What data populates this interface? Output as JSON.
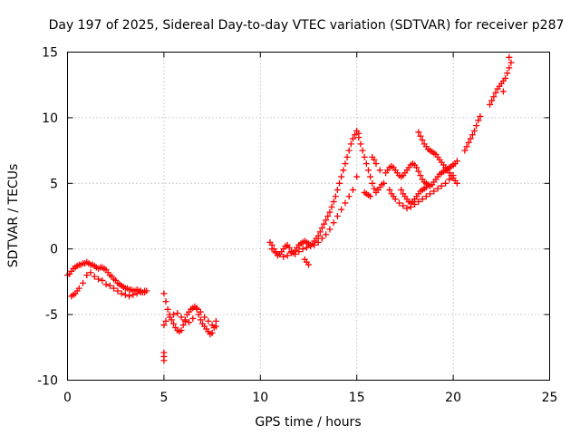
{
  "chart_data": {
    "type": "scatter",
    "title": "Day 197 of 2025, Sidereal Day-to-day VTEC variation (SDTVAR) for receiver p287",
    "xlabel": "GPS time / hours",
    "ylabel": "SDTVAR / TECUs",
    "xlim": [
      0,
      25
    ],
    "ylim": [
      -10,
      15
    ],
    "xticks": [
      0,
      5,
      10,
      15,
      20,
      25
    ],
    "yticks": [
      -10,
      -5,
      0,
      5,
      10,
      15
    ],
    "xtick_labels": [
      "0",
      "5",
      "10",
      "15",
      "20",
      "25"
    ],
    "ytick_labels": [
      "-10",
      "-5",
      "0",
      "5",
      "10",
      "15"
    ],
    "grid": true,
    "marker": "+",
    "color": "#ff0000",
    "series": [
      {
        "name": "SDTVAR",
        "x": [
          0.0,
          0.1,
          0.2,
          0.3,
          0.4,
          0.5,
          0.6,
          0.7,
          0.8,
          0.9,
          1.0,
          1.1,
          1.2,
          1.3,
          1.4,
          1.5,
          1.6,
          1.7,
          1.8,
          1.9,
          2.0,
          2.1,
          2.2,
          2.3,
          2.4,
          2.5,
          2.6,
          2.7,
          2.8,
          2.9,
          3.0,
          3.1,
          3.2,
          3.3,
          3.4,
          3.5,
          3.6,
          3.7,
          3.8,
          3.9,
          4.0,
          4.1,
          0.2,
          0.3,
          0.4,
          0.5,
          0.6,
          0.8,
          1.0,
          1.2,
          1.4,
          1.6,
          1.8,
          2.0,
          2.2,
          2.4,
          2.6,
          2.8,
          3.0,
          3.2,
          3.4,
          3.6,
          3.8,
          4.0,
          5.0,
          5.1,
          5.2,
          5.3,
          5.4,
          5.5,
          5.6,
          5.7,
          5.8,
          5.9,
          6.0,
          6.1,
          6.2,
          6.3,
          6.4,
          6.5,
          6.6,
          6.7,
          6.8,
          6.9,
          7.0,
          7.1,
          7.2,
          7.3,
          7.4,
          7.5,
          7.6,
          7.7,
          5.0,
          5.1,
          5.3,
          5.5,
          5.7,
          5.9,
          6.1,
          6.3,
          6.5,
          6.7,
          6.9,
          7.1,
          7.3,
          7.5,
          7.7,
          5.0,
          5.0,
          5.0,
          10.5,
          10.6,
          10.7,
          10.8,
          10.9,
          11.0,
          11.1,
          11.2,
          11.3,
          11.4,
          11.5,
          11.6,
          11.7,
          11.8,
          11.9,
          12.0,
          12.1,
          12.2,
          12.3,
          12.4,
          12.5,
          12.6,
          12.7,
          12.8,
          12.9,
          13.0,
          13.1,
          13.2,
          13.3,
          13.4,
          13.5,
          13.6,
          13.7,
          13.8,
          13.9,
          14.0,
          14.1,
          14.2,
          14.3,
          14.4,
          14.5,
          14.6,
          14.7,
          14.8,
          14.9,
          15.0,
          15.1,
          10.6,
          10.8,
          11.0,
          11.2,
          11.4,
          11.6,
          11.8,
          12.0,
          12.2,
          12.4,
          12.6,
          12.8,
          13.0,
          13.2,
          13.4,
          13.6,
          13.8,
          14.0,
          14.2,
          14.4,
          14.6,
          14.8,
          15.0,
          12.3,
          12.4,
          12.5,
          15.1,
          15.2,
          15.3,
          15.4,
          15.5,
          15.6,
          15.7,
          15.8,
          15.9,
          16.0,
          16.1,
          16.2,
          16.3,
          16.4,
          15.4,
          15.5,
          15.6,
          15.7,
          15.8,
          15.9,
          16.0,
          16.2,
          16.5,
          16.6,
          16.7,
          16.8,
          16.9,
          17.0,
          17.1,
          17.2,
          17.3,
          17.4,
          17.5,
          17.6,
          17.7,
          17.8,
          17.9,
          18.0,
          18.1,
          18.2,
          18.3,
          18.4,
          18.5,
          18.6,
          18.7,
          18.8,
          18.9,
          19.0,
          19.1,
          19.2,
          19.3,
          19.4,
          19.5,
          19.6,
          19.7,
          19.8,
          19.9,
          20.0,
          20.1,
          20.2,
          16.7,
          16.8,
          16.9,
          17.0,
          17.2,
          17.4,
          17.6,
          17.8,
          18.0,
          18.2,
          18.4,
          18.6,
          18.8,
          19.0,
          19.2,
          19.4,
          19.6,
          19.8,
          20.0,
          18.2,
          18.3,
          18.4,
          18.5,
          18.6,
          18.7,
          18.8,
          18.9,
          19.0,
          19.1,
          19.2,
          19.3,
          19.4,
          19.5,
          19.6,
          19.7,
          19.8,
          19.9,
          20.0,
          20.1,
          20.2,
          17.3,
          17.4,
          17.5,
          17.6,
          17.7,
          17.8,
          17.9,
          18.0,
          18.1,
          18.2,
          18.3,
          18.4,
          18.5,
          18.6,
          20.6,
          20.7,
          20.8,
          20.9,
          21.0,
          21.1,
          21.2,
          21.3,
          21.4,
          21.9,
          22.0,
          22.1,
          22.2,
          22.3,
          22.4,
          22.5,
          22.6,
          22.7,
          22.8,
          22.9,
          23.0,
          22.9,
          22.6
        ],
        "y": [
          -2.0,
          -1.9,
          -1.7,
          -1.5,
          -1.4,
          -1.3,
          -1.2,
          -1.2,
          -1.1,
          -1.1,
          -1.0,
          -1.1,
          -1.2,
          -1.2,
          -1.3,
          -1.4,
          -1.5,
          -1.4,
          -1.4,
          -1.5,
          -1.6,
          -1.8,
          -2.0,
          -2.1,
          -2.3,
          -2.4,
          -2.6,
          -2.7,
          -2.8,
          -2.9,
          -3.0,
          -3.0,
          -3.1,
          -3.1,
          -3.2,
          -3.2,
          -3.1,
          -3.2,
          -3.2,
          -3.3,
          -3.3,
          -3.2,
          -3.6,
          -3.5,
          -3.4,
          -3.2,
          -3.0,
          -2.6,
          -2.0,
          -1.8,
          -2.1,
          -2.3,
          -2.4,
          -2.7,
          -2.8,
          -3.0,
          -3.2,
          -3.4,
          -3.5,
          -3.6,
          -3.5,
          -3.4,
          -3.3,
          -3.2,
          -3.4,
          -4.0,
          -4.6,
          -5.0,
          -5.4,
          -5.7,
          -6.0,
          -6.2,
          -6.3,
          -6.2,
          -5.8,
          -5.4,
          -5.0,
          -4.8,
          -4.6,
          -4.5,
          -4.4,
          -4.6,
          -5.0,
          -5.4,
          -5.7,
          -5.9,
          -6.1,
          -6.3,
          -6.5,
          -6.4,
          -6.0,
          -5.5,
          -5.8,
          -5.5,
          -5.2,
          -5.0,
          -4.9,
          -5.2,
          -5.5,
          -5.6,
          -5.3,
          -4.5,
          -4.8,
          -5.2,
          -5.5,
          -5.8,
          -5.9,
          -7.9,
          -8.2,
          -8.5,
          0.5,
          0.3,
          0.0,
          -0.3,
          -0.5,
          -0.4,
          -0.2,
          0.0,
          0.2,
          0.3,
          0.1,
          -0.2,
          -0.3,
          -0.1,
          0.1,
          0.3,
          0.4,
          0.5,
          0.6,
          0.5,
          0.4,
          0.3,
          0.4,
          0.6,
          0.8,
          1.0,
          1.3,
          1.6,
          1.9,
          2.2,
          2.5,
          2.8,
          3.2,
          3.6,
          4.0,
          4.5,
          5.0,
          5.5,
          6.0,
          6.5,
          7.0,
          7.5,
          8.0,
          8.4,
          8.7,
          9.0,
          8.8,
          0.0,
          -0.2,
          -0.4,
          -0.6,
          -0.5,
          -0.3,
          -0.4,
          -0.2,
          0.0,
          0.1,
          0.2,
          0.3,
          0.5,
          0.8,
          1.1,
          1.5,
          2.0,
          2.5,
          3.0,
          3.5,
          4.0,
          4.5,
          5.5,
          -0.8,
          -1.0,
          -1.2,
          8.5,
          8.0,
          7.5,
          7.0,
          6.5,
          6.0,
          5.5,
          5.0,
          4.6,
          4.3,
          4.5,
          4.7,
          4.9,
          5.0,
          4.3,
          4.2,
          4.1,
          4.0,
          7.0,
          6.8,
          6.5,
          6.0,
          5.8,
          6.0,
          6.2,
          6.3,
          6.2,
          6.0,
          5.8,
          5.6,
          5.5,
          5.6,
          5.8,
          6.0,
          6.2,
          6.4,
          6.5,
          6.4,
          6.2,
          5.9,
          5.6,
          5.3,
          5.1,
          5.0,
          4.9,
          4.8,
          4.9,
          5.1,
          5.3,
          5.5,
          5.7,
          5.8,
          5.9,
          6.0,
          6.1,
          6.2,
          6.3,
          6.4,
          6.5,
          6.7,
          4.5,
          4.2,
          4.0,
          3.8,
          3.5,
          3.3,
          3.1,
          3.2,
          3.4,
          3.6,
          3.8,
          4.0,
          4.2,
          4.4,
          4.6,
          4.8,
          5.0,
          5.3,
          5.6,
          8.9,
          8.6,
          8.3,
          8.0,
          7.8,
          7.6,
          7.5,
          7.4,
          7.3,
          7.2,
          7.0,
          6.8,
          6.6,
          6.4,
          6.2,
          6.0,
          5.8,
          5.6,
          5.4,
          5.2,
          5.0,
          4.5,
          4.2,
          4.0,
          3.8,
          3.6,
          3.5,
          3.6,
          3.8,
          4.0,
          4.2,
          4.4,
          4.5,
          4.6,
          4.7,
          7.5,
          7.8,
          8.1,
          8.4,
          8.7,
          9.0,
          9.4,
          9.8,
          10.1,
          11.0,
          11.3,
          11.6,
          11.9,
          12.2,
          12.4,
          12.6,
          12.8,
          13.0,
          13.4,
          13.8,
          14.2,
          14.6,
          12.0
        ]
      }
    ]
  }
}
